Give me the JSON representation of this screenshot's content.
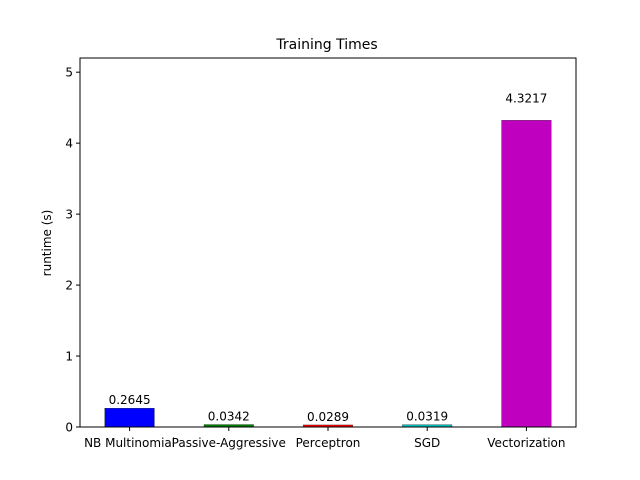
{
  "chart_data": {
    "type": "bar",
    "title": "Training Times",
    "xlabel": "",
    "ylabel": "runtime (s)",
    "categories": [
      "NB Multinomial",
      "Passive-Aggressive",
      "Perceptron",
      "SGD",
      "Vectorization"
    ],
    "values": [
      0.2645,
      0.0342,
      0.0289,
      0.0319,
      4.3217
    ],
    "value_labels": [
      "0.2645",
      "0.0342",
      "0.0289",
      "0.0319",
      "4.3217"
    ],
    "colors": [
      "#0000ff",
      "#008000",
      "#ff0000",
      "#00bfbf",
      "#bf00bf"
    ],
    "ylim": [
      0,
      5.2
    ],
    "yticks": [
      0,
      1,
      2,
      3,
      4,
      5
    ],
    "grid": false,
    "legend": "none"
  }
}
